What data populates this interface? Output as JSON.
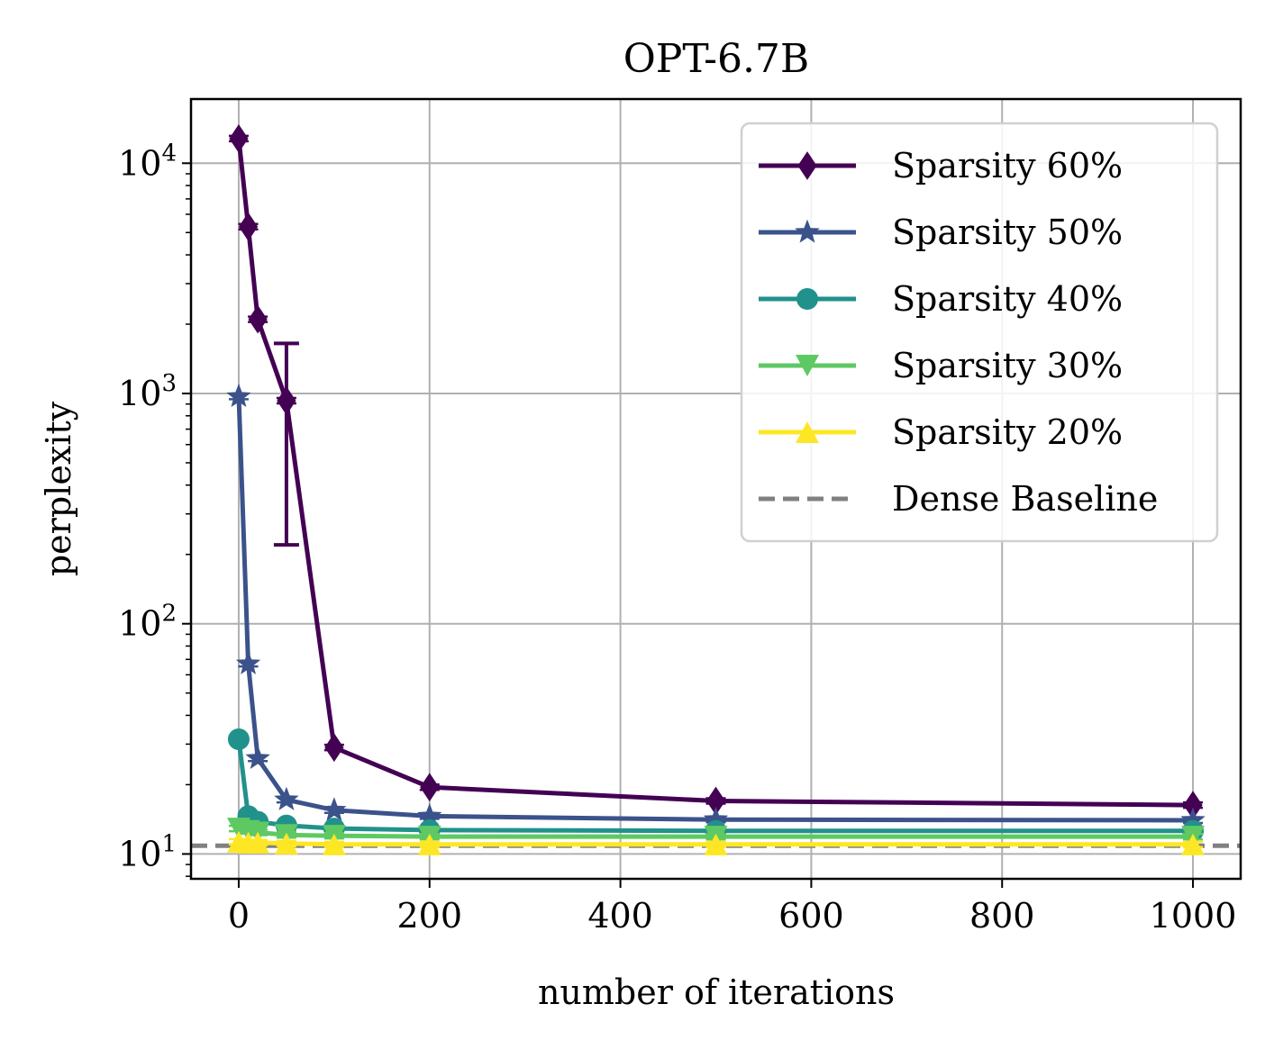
{
  "chart_data": {
    "type": "line",
    "title": "OPT-6.7B",
    "xlabel": "number of iterations",
    "ylabel": "perplexity",
    "xlim": [
      -50,
      1050
    ],
    "ylim": [
      7.8,
      19000
    ],
    "yscale": "log",
    "grid": true,
    "legend_position": "top-right",
    "x_ticks": [
      0,
      200,
      400,
      600,
      800,
      1000
    ],
    "x_tick_labels": [
      "0",
      "200",
      "400",
      "600",
      "800",
      "1000"
    ],
    "y_ticks": [
      10,
      100,
      1000,
      10000
    ],
    "y_tick_labels": [
      {
        "base": "10",
        "exp": "1"
      },
      {
        "base": "10",
        "exp": "2"
      },
      {
        "base": "10",
        "exp": "3"
      },
      {
        "base": "10",
        "exp": "4"
      }
    ],
    "x": [
      0,
      10,
      20,
      50,
      100,
      200,
      500,
      1000
    ],
    "series": [
      {
        "name": "Sparsity 60%",
        "color": "#440154",
        "marker": "diamond",
        "values": [
          12800,
          5300,
          2100,
          930,
          29,
          19.5,
          17,
          16.3
        ],
        "error": [
          {
            "x": 50,
            "low": 220,
            "high": 1650
          }
        ]
      },
      {
        "name": "Sparsity 50%",
        "color": "#3b528b",
        "marker": "star",
        "values": [
          970,
          67,
          26,
          17.2,
          15.5,
          14.6,
          14.1,
          14
        ]
      },
      {
        "name": "Sparsity 40%",
        "color": "#21918c",
        "marker": "circle",
        "values": [
          31.5,
          14.6,
          13.8,
          13.3,
          12.9,
          12.7,
          12.6,
          12.6
        ]
      },
      {
        "name": "Sparsity 30%",
        "color": "#5ec962",
        "marker": "triangle-down",
        "values": [
          12.9,
          12.6,
          12.4,
          12.1,
          12,
          11.9,
          11.9,
          11.9
        ]
      },
      {
        "name": "Sparsity 20%",
        "color": "#fde725",
        "marker": "triangle-up",
        "values": [
          11.3,
          11.2,
          11.2,
          11.1,
          11,
          11,
          11,
          11
        ]
      }
    ],
    "baseline": {
      "name": "Dense Baseline",
      "color": "#808080",
      "value": 10.86
    }
  }
}
